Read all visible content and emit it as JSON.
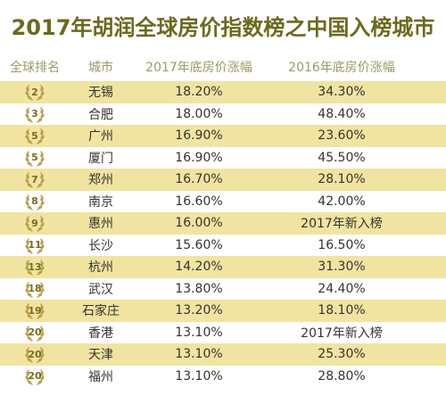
{
  "title": "2017年胡润全球房价指数榜之中国入榜城市",
  "headers": {
    "rank": "全球排名",
    "city": "城市",
    "y2017": "2017年底房价涨幅",
    "y2016": "2016年底房价涨幅"
  },
  "rows": [
    {
      "rank": "2",
      "city": "无锡",
      "y2017": "18.20%",
      "y2016": "34.30%"
    },
    {
      "rank": "3",
      "city": "合肥",
      "y2017": "18.00%",
      "y2016": "48.40%"
    },
    {
      "rank": "5",
      "city": "广州",
      "y2017": "16.90%",
      "y2016": "23.60%"
    },
    {
      "rank": "5",
      "city": "厦门",
      "y2017": "16.90%",
      "y2016": "45.50%"
    },
    {
      "rank": "7",
      "city": "郑州",
      "y2017": "16.70%",
      "y2016": "28.10%"
    },
    {
      "rank": "8",
      "city": "南京",
      "y2017": "16.60%",
      "y2016": "42.00%"
    },
    {
      "rank": "9",
      "city": "惠州",
      "y2017": "16.00%",
      "y2016": "2017年新入榜"
    },
    {
      "rank": "11",
      "city": "长沙",
      "y2017": "15.60%",
      "y2016": "16.50%"
    },
    {
      "rank": "13",
      "city": "杭州",
      "y2017": "14.20%",
      "y2016": "31.30%"
    },
    {
      "rank": "18",
      "city": "武汉",
      "y2017": "13.80%",
      "y2016": "24.40%"
    },
    {
      "rank": "19",
      "city": "石家庄",
      "y2017": "13.20%",
      "y2016": "18.10%"
    },
    {
      "rank": "20",
      "city": "香港",
      "y2017": "13.10%",
      "y2016": "2017年新入榜"
    },
    {
      "rank": "20",
      "city": "天津",
      "y2017": "13.10%",
      "y2016": "25.30%"
    },
    {
      "rank": "20",
      "city": "福州",
      "y2017": "13.10%",
      "y2016": "28.80%"
    }
  ],
  "colors": {
    "title": "#6b6a1c",
    "header": "#9c9a64",
    "band": "#f0e4a0",
    "laurel": "#b8a04a"
  },
  "icons": {
    "rank_badge": "laurel-wreath-icon"
  }
}
